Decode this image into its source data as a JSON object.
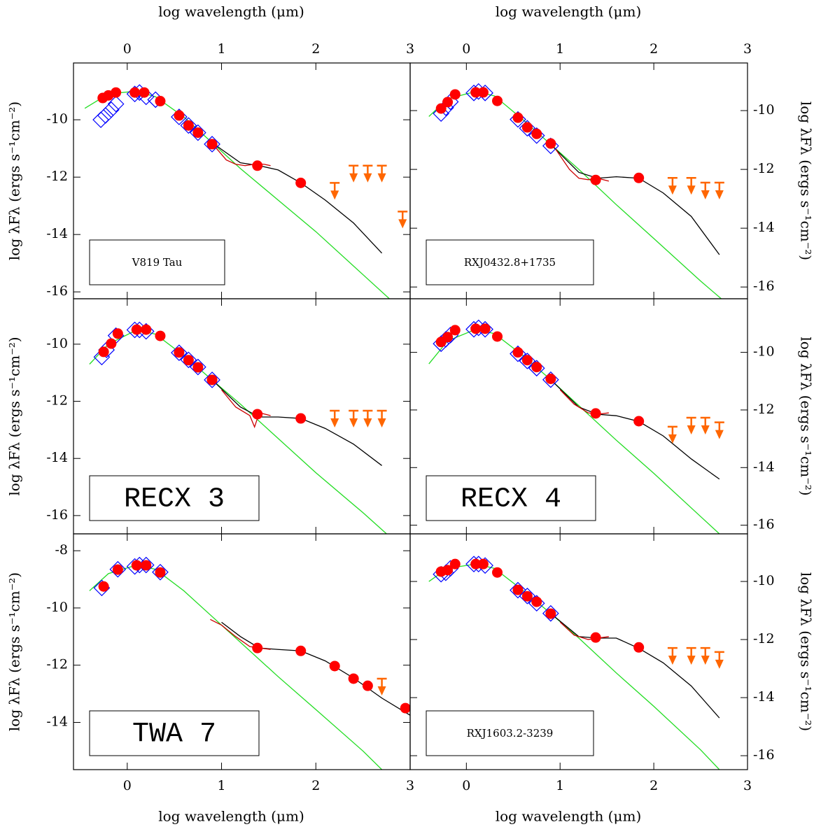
{
  "chart_data": [
    {
      "type": "scatter",
      "label": "V819 Tau",
      "label_font": "small",
      "xlabel": "log wavelength (μm)",
      "ylabel": "log λFλ (ergs s⁻¹cm⁻²)",
      "x_axis_side": "top",
      "y_axis_side": "left",
      "xlim": [
        -0.57,
        3
      ],
      "ylim": [
        -16.24,
        -8.02
      ],
      "xticks": [
        0,
        1,
        2,
        3
      ],
      "yticks": [
        -10,
        -12,
        -14,
        -16
      ],
      "series": [
        {
          "marker": "line",
          "color": "#22dd22",
          "x": [
            -0.45,
            -0.2,
            0.1,
            0.3,
            0.6,
            0.9,
            1.2,
            1.6,
            2.0,
            2.5,
            2.78
          ],
          "values": [
            -9.6,
            -9.1,
            -9.0,
            -9.2,
            -9.9,
            -10.8,
            -11.7,
            -12.8,
            -13.9,
            -15.4,
            -16.24
          ]
        },
        {
          "marker": "line",
          "color": "#000000",
          "x": [
            0.9,
            1.2,
            1.4,
            1.6,
            1.84,
            2.1,
            2.4,
            2.7
          ],
          "values": [
            -10.8,
            -11.5,
            -11.6,
            -11.75,
            -12.2,
            -12.8,
            -13.6,
            -14.65
          ]
        },
        {
          "marker": "line",
          "color": "#cc0000",
          "x": [
            0.92,
            1.05,
            1.15,
            1.25,
            1.35,
            1.45,
            1.52
          ],
          "values": [
            -10.9,
            -11.4,
            -11.55,
            -11.6,
            -11.55,
            -11.55,
            -11.6
          ]
        },
        {
          "marker": "diamond",
          "color": "#0000ff",
          "x": [
            -0.28,
            -0.23,
            -0.17,
            -0.12,
            0.08,
            0.13,
            0.2,
            0.3,
            0.55,
            0.65,
            0.75,
            0.9
          ],
          "values": [
            -10.0,
            -9.85,
            -9.65,
            -9.45,
            -9.1,
            -9.05,
            -9.2,
            -9.3,
            -9.9,
            -10.2,
            -10.45,
            -10.85
          ]
        },
        {
          "marker": "circle",
          "color": "#ff0000",
          "x": [
            -0.26,
            -0.2,
            -0.12,
            0.08,
            0.18,
            0.35,
            0.55,
            0.65,
            0.75,
            0.9,
            1.38,
            1.84
          ],
          "values": [
            -9.24,
            -9.15,
            -9.05,
            -9.05,
            -9.05,
            -9.35,
            -9.85,
            -10.2,
            -10.45,
            -10.85,
            -11.6,
            -12.2
          ]
        },
        {
          "marker": "upper-limit",
          "color": "#ff6600",
          "x": [
            2.2,
            2.4,
            2.55,
            2.7,
            2.92
          ],
          "values": [
            -12.2,
            -11.6,
            -11.6,
            -11.6,
            -13.2
          ]
        }
      ]
    },
    {
      "type": "scatter",
      "label": "RXJ0432.8+1735",
      "label_font": "small",
      "xlabel": "log wavelength (μm)",
      "ylabel": "log λFλ (ergs s⁻¹cm⁻²)",
      "x_axis_side": "top",
      "y_axis_side": "right",
      "xlim": [
        -0.6,
        3
      ],
      "ylim": [
        -16.4,
        -8.38
      ],
      "xticks": [
        0,
        1,
        2,
        3
      ],
      "yticks": [
        -10,
        -12,
        -14,
        -16
      ],
      "series": [
        {
          "marker": "line",
          "color": "#22dd22",
          "x": [
            -0.4,
            -0.2,
            0.1,
            0.3,
            0.6,
            0.9,
            1.2,
            1.6,
            2.0,
            2.5,
            2.72
          ],
          "values": [
            -10.2,
            -9.6,
            -9.35,
            -9.5,
            -10.3,
            -11.15,
            -12.0,
            -13.2,
            -14.35,
            -15.8,
            -16.4
          ]
        },
        {
          "marker": "line",
          "color": "#000000",
          "x": [
            0.9,
            1.2,
            1.4,
            1.6,
            1.84,
            2.1,
            2.4,
            2.7
          ],
          "values": [
            -11.15,
            -12.1,
            -12.3,
            -12.25,
            -12.3,
            -12.8,
            -13.6,
            -14.9
          ]
        },
        {
          "marker": "line",
          "color": "#cc0000",
          "x": [
            0.95,
            1.1,
            1.2,
            1.3,
            1.4,
            1.52
          ],
          "values": [
            -11.3,
            -12.0,
            -12.3,
            -12.35,
            -12.3,
            -12.4
          ]
        },
        {
          "marker": "diamond",
          "color": "#0000ff",
          "x": [
            -0.27,
            -0.22,
            -0.17,
            0.08,
            0.13,
            0.2,
            0.55,
            0.65,
            0.75,
            0.9
          ],
          "values": [
            -10.1,
            -9.9,
            -9.7,
            -9.4,
            -9.35,
            -9.4,
            -10.3,
            -10.6,
            -10.85,
            -11.2
          ]
        },
        {
          "marker": "circle",
          "color": "#ff0000",
          "x": [
            -0.27,
            -0.2,
            -0.12,
            0.1,
            0.18,
            0.33,
            0.55,
            0.65,
            0.75,
            0.9,
            1.38,
            1.84
          ],
          "values": [
            -9.93,
            -9.71,
            -9.45,
            -9.38,
            -9.38,
            -9.67,
            -10.24,
            -10.57,
            -10.79,
            -11.12,
            -12.36,
            -12.29
          ]
        },
        {
          "marker": "upper-limit",
          "color": "#ff6600",
          "x": [
            2.2,
            2.4,
            2.55,
            2.7
          ],
          "values": [
            -12.29,
            -12.29,
            -12.45,
            -12.45
          ]
        }
      ]
    },
    {
      "type": "scatter",
      "label": "RECX 3",
      "label_font": "large",
      "ylabel": "log λFλ (ergs s⁻¹cm⁻²)",
      "x_axis_side": "none",
      "y_axis_side": "left",
      "xlim": [
        -0.57,
        3
      ],
      "ylim": [
        -16.64,
        -8.41
      ],
      "xticks": [
        0,
        1,
        2,
        3
      ],
      "yticks": [
        -10,
        -12,
        -14,
        -16
      ],
      "series": [
        {
          "marker": "line",
          "color": "#22dd22",
          "x": [
            -0.4,
            -0.2,
            0.1,
            0.3,
            0.6,
            0.9,
            1.2,
            1.6,
            2.0,
            2.5,
            2.75
          ],
          "values": [
            -10.7,
            -10.0,
            -9.5,
            -9.65,
            -10.4,
            -11.25,
            -12.1,
            -13.3,
            -14.5,
            -15.9,
            -16.64
          ]
        },
        {
          "marker": "line",
          "color": "#000000",
          "x": [
            0.9,
            1.2,
            1.4,
            1.6,
            1.84,
            2.1,
            2.4,
            2.7
          ],
          "values": [
            -11.25,
            -12.2,
            -12.55,
            -12.55,
            -12.6,
            -12.95,
            -13.5,
            -14.25
          ]
        },
        {
          "marker": "line",
          "color": "#cc0000",
          "x": [
            1.0,
            1.15,
            1.3,
            1.35,
            1.4,
            1.52
          ],
          "values": [
            -11.6,
            -12.2,
            -12.5,
            -12.9,
            -12.4,
            -12.5
          ]
        },
        {
          "marker": "diamond",
          "color": "#0000ff",
          "x": [
            -0.27,
            -0.22,
            -0.12,
            0.08,
            0.13,
            0.2,
            0.55,
            0.65,
            0.75,
            0.9
          ],
          "values": [
            -10.45,
            -10.2,
            -9.7,
            -9.5,
            -9.5,
            -9.55,
            -10.3,
            -10.55,
            -10.8,
            -11.25
          ]
        },
        {
          "marker": "circle",
          "color": "#ff0000",
          "x": [
            -0.25,
            -0.17,
            -0.1,
            0.1,
            0.2,
            0.35,
            0.55,
            0.65,
            0.75,
            0.9,
            1.38,
            1.84
          ],
          "values": [
            -10.27,
            -9.98,
            -9.63,
            -9.49,
            -9.49,
            -9.71,
            -10.29,
            -10.56,
            -10.81,
            -11.25,
            -12.45,
            -12.6
          ]
        },
        {
          "marker": "upper-limit",
          "color": "#ff6600",
          "x": [
            2.2,
            2.4,
            2.55,
            2.7
          ],
          "values": [
            -12.33,
            -12.33,
            -12.33,
            -12.33
          ]
        }
      ]
    },
    {
      "type": "scatter",
      "label": "RECX 4",
      "label_font": "large",
      "ylabel": "log λFλ (ergs s⁻¹cm⁻²)",
      "x_axis_side": "none",
      "y_axis_side": "right",
      "xlim": [
        -0.6,
        3
      ],
      "ylim": [
        -16.3,
        -8.14
      ],
      "xticks": [
        0,
        1,
        2,
        3
      ],
      "yticks": [
        -10,
        -12,
        -14,
        -16
      ],
      "series": [
        {
          "marker": "line",
          "color": "#22dd22",
          "x": [
            -0.4,
            -0.2,
            0.1,
            0.3,
            0.6,
            0.9,
            1.2,
            1.6,
            2.0,
            2.5,
            2.7
          ],
          "values": [
            -10.4,
            -9.6,
            -9.2,
            -9.35,
            -10.1,
            -10.95,
            -11.85,
            -13.05,
            -14.2,
            -15.7,
            -16.3
          ]
        },
        {
          "marker": "line",
          "color": "#000000",
          "x": [
            0.9,
            1.2,
            1.4,
            1.6,
            1.84,
            2.1,
            2.4,
            2.7
          ],
          "values": [
            -10.95,
            -11.9,
            -12.15,
            -12.2,
            -12.4,
            -12.9,
            -13.7,
            -14.4
          ]
        },
        {
          "marker": "line",
          "color": "#cc0000",
          "x": [
            1.0,
            1.15,
            1.3,
            1.4,
            1.52
          ],
          "values": [
            -11.3,
            -11.8,
            -12.1,
            -12.15,
            -12.1
          ]
        },
        {
          "marker": "diamond",
          "color": "#0000ff",
          "x": [
            -0.27,
            -0.22,
            -0.17,
            0.08,
            0.13,
            0.2,
            0.55,
            0.65,
            0.75,
            0.9
          ],
          "values": [
            -9.7,
            -9.55,
            -9.4,
            -9.2,
            -9.15,
            -9.2,
            -10.05,
            -10.3,
            -10.55,
            -10.95
          ]
        },
        {
          "marker": "circle",
          "color": "#ff0000",
          "x": [
            -0.27,
            -0.2,
            -0.12,
            0.1,
            0.2,
            0.33,
            0.55,
            0.65,
            0.75,
            0.9,
            1.38,
            1.84
          ],
          "values": [
            -9.64,
            -9.47,
            -9.23,
            -9.18,
            -9.18,
            -9.45,
            -10.0,
            -10.27,
            -10.51,
            -10.92,
            -12.12,
            -12.39
          ]
        },
        {
          "marker": "upper-limit",
          "color": "#ff6600",
          "x": [
            2.2,
            2.4,
            2.55,
            2.7
          ],
          "values": [
            -12.58,
            -12.27,
            -12.27,
            -12.43
          ]
        }
      ]
    },
    {
      "type": "scatter",
      "label": "TWA 7",
      "label_font": "large",
      "xlabel": "log wavelength (μm)",
      "ylabel": "log λFλ (ergs s⁻¹cm⁻²)",
      "x_axis_side": "bottom",
      "y_axis_side": "left",
      "xlim": [
        -0.57,
        3
      ],
      "ylim": [
        -15.65,
        -7.41
      ],
      "xticks": [
        0,
        1,
        2,
        3
      ],
      "yticks": [
        -8,
        -10,
        -12,
        -14
      ],
      "series": [
        {
          "marker": "line",
          "color": "#22dd22",
          "x": [
            -0.4,
            -0.2,
            0.1,
            0.3,
            0.6,
            0.9,
            1.2,
            1.6,
            2.0,
            2.5,
            2.7
          ],
          "values": [
            -9.4,
            -8.8,
            -8.5,
            -8.65,
            -9.4,
            -10.3,
            -11.2,
            -12.4,
            -13.55,
            -15.0,
            -15.65
          ]
        },
        {
          "marker": "line",
          "color": "#000000",
          "x": [
            1.0,
            1.2,
            1.4,
            1.6,
            1.84,
            2.1,
            2.4,
            2.7,
            3.0
          ],
          "values": [
            -10.5,
            -11.0,
            -11.4,
            -11.45,
            -11.5,
            -11.85,
            -12.45,
            -13.15,
            -13.75
          ]
        },
        {
          "marker": "line",
          "color": "#cc0000",
          "x": [
            0.88,
            1.0,
            1.15,
            1.3,
            1.4,
            1.52
          ],
          "values": [
            -10.4,
            -10.6,
            -11.0,
            -11.35,
            -11.4,
            -11.45
          ]
        },
        {
          "marker": "diamond",
          "color": "#0000ff",
          "x": [
            -0.27,
            -0.1,
            0.08,
            0.13,
            0.2,
            0.35
          ],
          "values": [
            -9.3,
            -8.65,
            -8.55,
            -8.5,
            -8.5,
            -8.75
          ]
        },
        {
          "marker": "circle",
          "color": "#ff0000",
          "x": [
            -0.25,
            -0.1,
            0.1,
            0.2,
            0.35,
            1.38,
            1.84,
            2.2,
            2.4,
            2.55,
            2.95
          ],
          "values": [
            -9.25,
            -8.66,
            -8.51,
            -8.51,
            -8.76,
            -11.4,
            -11.5,
            -12.03,
            -12.47,
            -12.72,
            -13.5
          ]
        },
        {
          "marker": "upper-limit",
          "color": "#ff6600",
          "x": [
            2.7
          ],
          "values": [
            -12.47
          ]
        }
      ]
    },
    {
      "type": "scatter",
      "label": "RXJ1603.2-3239",
      "label_font": "small",
      "xlabel": "log wavelength (μm)",
      "ylabel": "log λFλ (ergs s⁻¹cm⁻²)",
      "x_axis_side": "bottom",
      "y_axis_side": "right",
      "xlim": [
        -0.6,
        3
      ],
      "ylim": [
        -16.48,
        -8.36
      ],
      "xticks": [
        0,
        1,
        2,
        3
      ],
      "yticks": [
        -10,
        -12,
        -14,
        -16
      ],
      "series": [
        {
          "marker": "line",
          "color": "#22dd22",
          "x": [
            -0.4,
            -0.2,
            0.1,
            0.3,
            0.6,
            0.9,
            1.2,
            1.6,
            2.0,
            2.5,
            2.7
          ],
          "values": [
            -10.0,
            -9.55,
            -9.4,
            -9.55,
            -10.3,
            -11.1,
            -11.95,
            -13.15,
            -14.3,
            -15.8,
            -16.48
          ]
        },
        {
          "marker": "line",
          "color": "#000000",
          "x": [
            0.9,
            1.2,
            1.4,
            1.6,
            1.84,
            2.1,
            2.4,
            2.7
          ],
          "values": [
            -11.1,
            -11.9,
            -11.95,
            -11.95,
            -12.3,
            -12.8,
            -13.6,
            -14.7
          ]
        },
        {
          "marker": "line",
          "color": "#cc0000",
          "x": [
            1.0,
            1.15,
            1.3,
            1.4,
            1.52
          ],
          "values": [
            -11.4,
            -11.85,
            -12.0,
            -11.95,
            -11.9
          ]
        },
        {
          "marker": "diamond",
          "color": "#0000ff",
          "x": [
            -0.27,
            -0.22,
            -0.17,
            0.08,
            0.13,
            0.2,
            0.55,
            0.65,
            0.75,
            0.9
          ],
          "values": [
            -9.75,
            -9.7,
            -9.55,
            -9.4,
            -9.4,
            -9.45,
            -10.3,
            -10.5,
            -10.75,
            -11.1
          ]
        },
        {
          "marker": "circle",
          "color": "#ff0000",
          "x": [
            -0.27,
            -0.2,
            -0.12,
            0.1,
            0.18,
            0.33,
            0.55,
            0.65,
            0.75,
            0.9,
            1.38,
            1.84
          ],
          "values": [
            -9.66,
            -9.61,
            -9.4,
            -9.4,
            -9.4,
            -9.69,
            -10.29,
            -10.51,
            -10.7,
            -11.11,
            -11.93,
            -12.27
          ]
        },
        {
          "marker": "upper-limit",
          "color": "#ff6600",
          "x": [
            2.2,
            2.4,
            2.55,
            2.7
          ],
          "values": [
            -12.29,
            -12.29,
            -12.29,
            -12.43
          ]
        }
      ]
    }
  ]
}
